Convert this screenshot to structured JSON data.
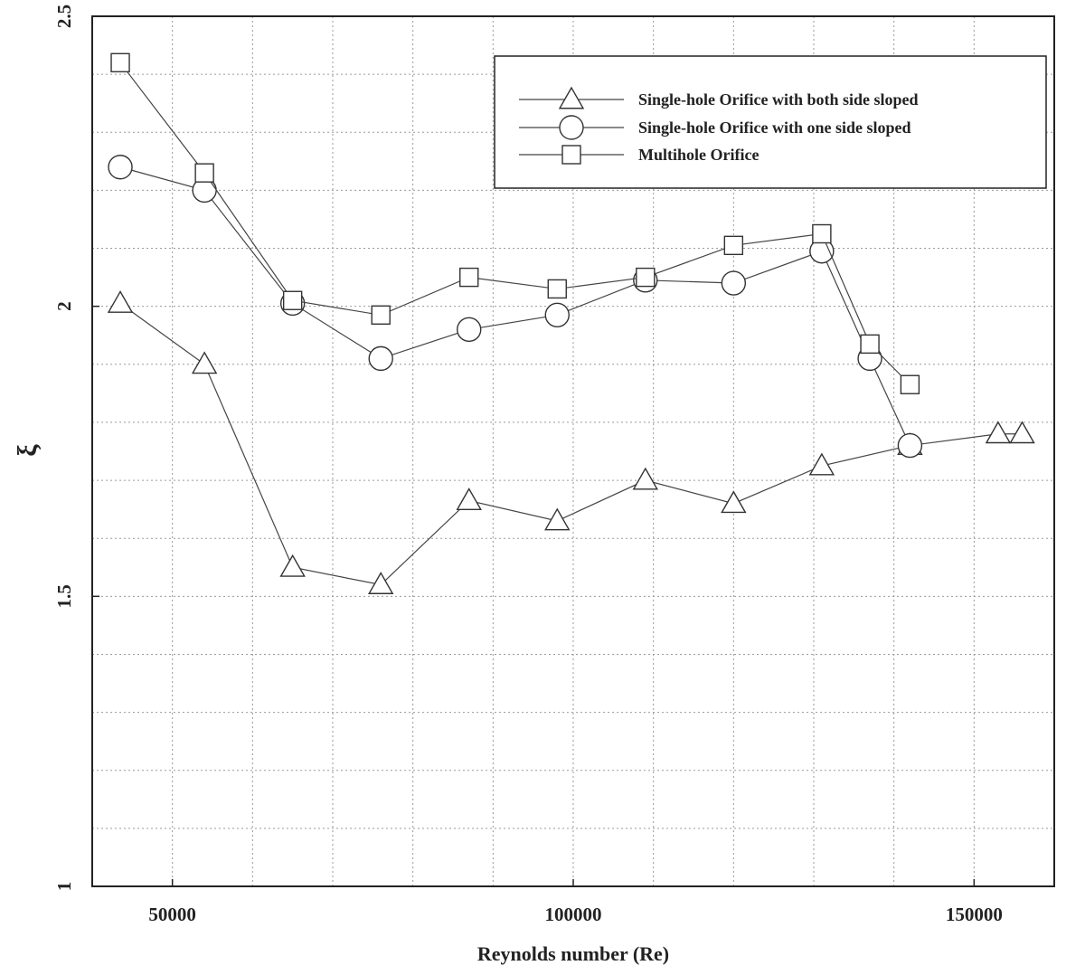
{
  "chart_data": {
    "type": "line",
    "xlabel": "Reynolds number (Re)",
    "ylabel": "ξ",
    "xlim": [
      40000,
      160000
    ],
    "ylim": [
      1,
      2.5
    ],
    "xticks": [
      50000,
      100000,
      150000
    ],
    "xtick_labels": [
      "50000",
      "100000",
      "150000"
    ],
    "yticks": [
      1,
      1.5,
      2,
      2.5
    ],
    "ytick_labels": [
      "1",
      "1.5",
      "2",
      "2.5"
    ],
    "grid": true,
    "legend_position": "top-right",
    "series": [
      {
        "name": "Single-hole Orifice with both side sloped",
        "marker": "triangle",
        "x": [
          43500,
          54000,
          65000,
          76000,
          87000,
          98000,
          109000,
          120000,
          131000,
          142000,
          153000,
          156000
        ],
        "y": [
          2.005,
          1.9,
          1.55,
          1.52,
          1.665,
          1.63,
          1.7,
          1.66,
          1.725,
          1.76,
          1.78,
          1.78
        ]
      },
      {
        "name": "Single-hole Orifice with one side sloped",
        "marker": "circle",
        "x": [
          43500,
          54000,
          65000,
          76000,
          87000,
          98000,
          109000,
          120000,
          131000,
          137000,
          142000
        ],
        "y": [
          2.24,
          2.2,
          2.005,
          1.91,
          1.96,
          1.985,
          2.045,
          2.04,
          2.095,
          1.91,
          1.76
        ]
      },
      {
        "name": "Multihole Orifice",
        "marker": "square",
        "x": [
          43500,
          54000,
          65000,
          76000,
          87000,
          98000,
          109000,
          120000,
          131000,
          137000,
          142000
        ],
        "y": [
          2.42,
          2.23,
          2.01,
          1.985,
          2.05,
          2.03,
          2.05,
          2.105,
          2.125,
          1.935,
          1.865
        ]
      }
    ]
  }
}
